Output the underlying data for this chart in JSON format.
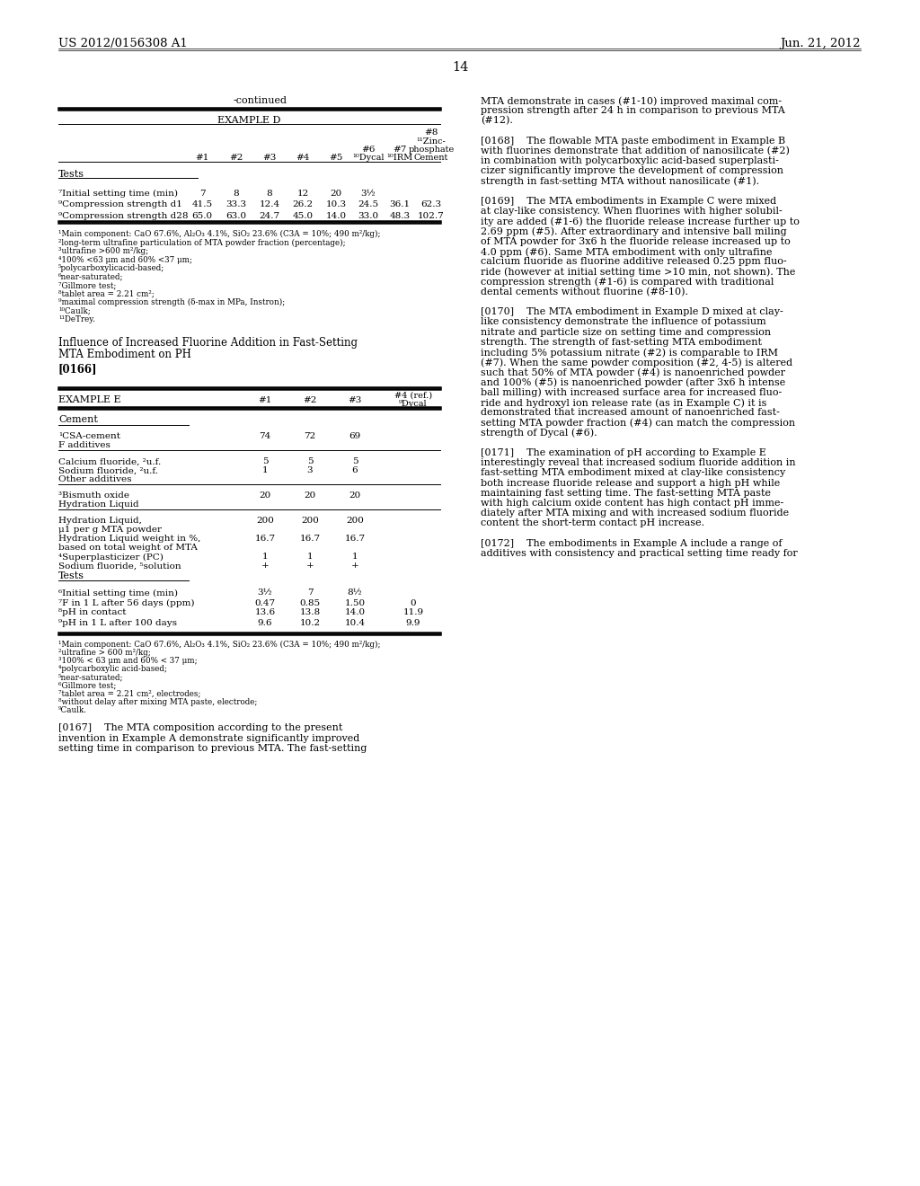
{
  "page_number": "14",
  "patent_number": "US 2012/0156308 A1",
  "patent_date": "Jun. 21, 2012",
  "background_color": "#ffffff",
  "table_d_continued_label": "-continued",
  "table_d_example_label": "EXAMPLE D",
  "table_d_footnotes": [
    "¹Main component: CaO 67.6%, Al₂O₃ 4.1%, SiO₂ 23.6% (C3A = 10%; 490 m²/kg);",
    "²long-term ultrafine particulation of MTA powder fraction (percentage);",
    "³ultrafine >600 m²/kg;",
    "⁴100% <63 μm and 60% <37 μm;",
    "⁵polycarboxylicacid-based;",
    "⁶near-saturated;",
    "⁷Gillmore test;",
    "⁸tablet area = 2.21 cm²;",
    "⁹maximal compression strength (δ-max in MPa, Instron);",
    "¹⁰Caulk;",
    "¹¹DeTrey."
  ],
  "section_title_line1": "Influence of Increased Fluorine Addition in Fast-Setting",
  "section_title_line2": "MTA Embodiment on PH",
  "table_e_footnotes": [
    "¹Main component: CaO 67.6%, Al₂O₃ 4.1%, SiO₂ 23.6% (C3A = 10%; 490 m²/kg);",
    "²ultrafine > 600 m²/kg;",
    "³100% < 63 μm and 60% < 37 μm;",
    "⁴polycarboxylic acid-based;",
    "⁵near-saturated;",
    "⁶Gillmore test;",
    "⁷tablet area = 2.21 cm², electrodes;",
    "⁸without delay after mixing MTA paste, electrode;",
    "⁹Caulk."
  ],
  "right_col_lines": [
    "MTA demonstrate in cases (#1-10) improved maximal com-",
    "pression strength after 24 h in comparison to previous MTA",
    "(#12).",
    "",
    "[0168]    The flowable MTA paste embodiment in Example B",
    "with fluorines demonstrate that addition of nanosilicate (#2)",
    "in combination with polycarboxylic acid-based superplasti-",
    "cizer significantly improve the development of compression",
    "strength in fast-setting MTA without nanosilicate (#1).",
    "",
    "[0169]    The MTA embodiments in Example C were mixed",
    "at clay-like consistency. When fluorines with higher solubil-",
    "ity are added (#1-6) the fluoride release increase further up to",
    "2.69 ppm (#5). After extraordinary and intensive ball miling",
    "of MTA powder for 3x6 h the fluoride release increased up to",
    "4.0 ppm (#6). Same MTA embodiment with only ultrafine",
    "calcium fluoride as fluorine additive released 0.25 ppm fluo-",
    "ride (however at initial setting time >10 min, not shown). The",
    "compression strength (#1-6) is compared with traditional",
    "dental cements without fluorine (#8-10).",
    "",
    "[0170]    The MTA embodiment in Example D mixed at clay-",
    "like consistency demonstrate the influence of potassium",
    "nitrate and particle size on setting time and compression",
    "strength. The strength of fast-setting MTA embodiment",
    "including 5% potassium nitrate (#2) is comparable to IRM",
    "(#7). When the same powder composition (#2, 4-5) is altered",
    "such that 50% of MTA powder (#4) is nanoenriched powder",
    "and 100% (#5) is nanoenriched powder (after 3x6 h intense",
    "ball milling) with increased surface area for increased fluo-",
    "ride and hydroxyl ion release rate (as in Example C) it is",
    "demonstrated that increased amount of nanoenriched fast-",
    "setting MTA powder fraction (#4) can match the compression",
    "strength of Dycal (#6).",
    "",
    "[0171]    The examination of pH according to Example E",
    "interestingly reveal that increased sodium fluoride addition in",
    "fast-setting MTA embodiment mixed at clay-like consistency",
    "both increase fluoride release and support a high pH while",
    "maintaining fast setting time. The fast-setting MTA paste",
    "with high calcium oxide content has high contact pH imme-",
    "diately after MTA mixing and with increased sodium fluoride",
    "content the short-term contact pH increase.",
    "",
    "[0172]    The embodiments in Example A include a range of",
    "additives with consistency and practical setting time ready for"
  ],
  "left_col_0167_lines": [
    "[0167]    The MTA composition according to the present",
    "invention in Example A demonstrate significantly improved",
    "setting time in comparison to previous MTA. The fast-setting"
  ]
}
